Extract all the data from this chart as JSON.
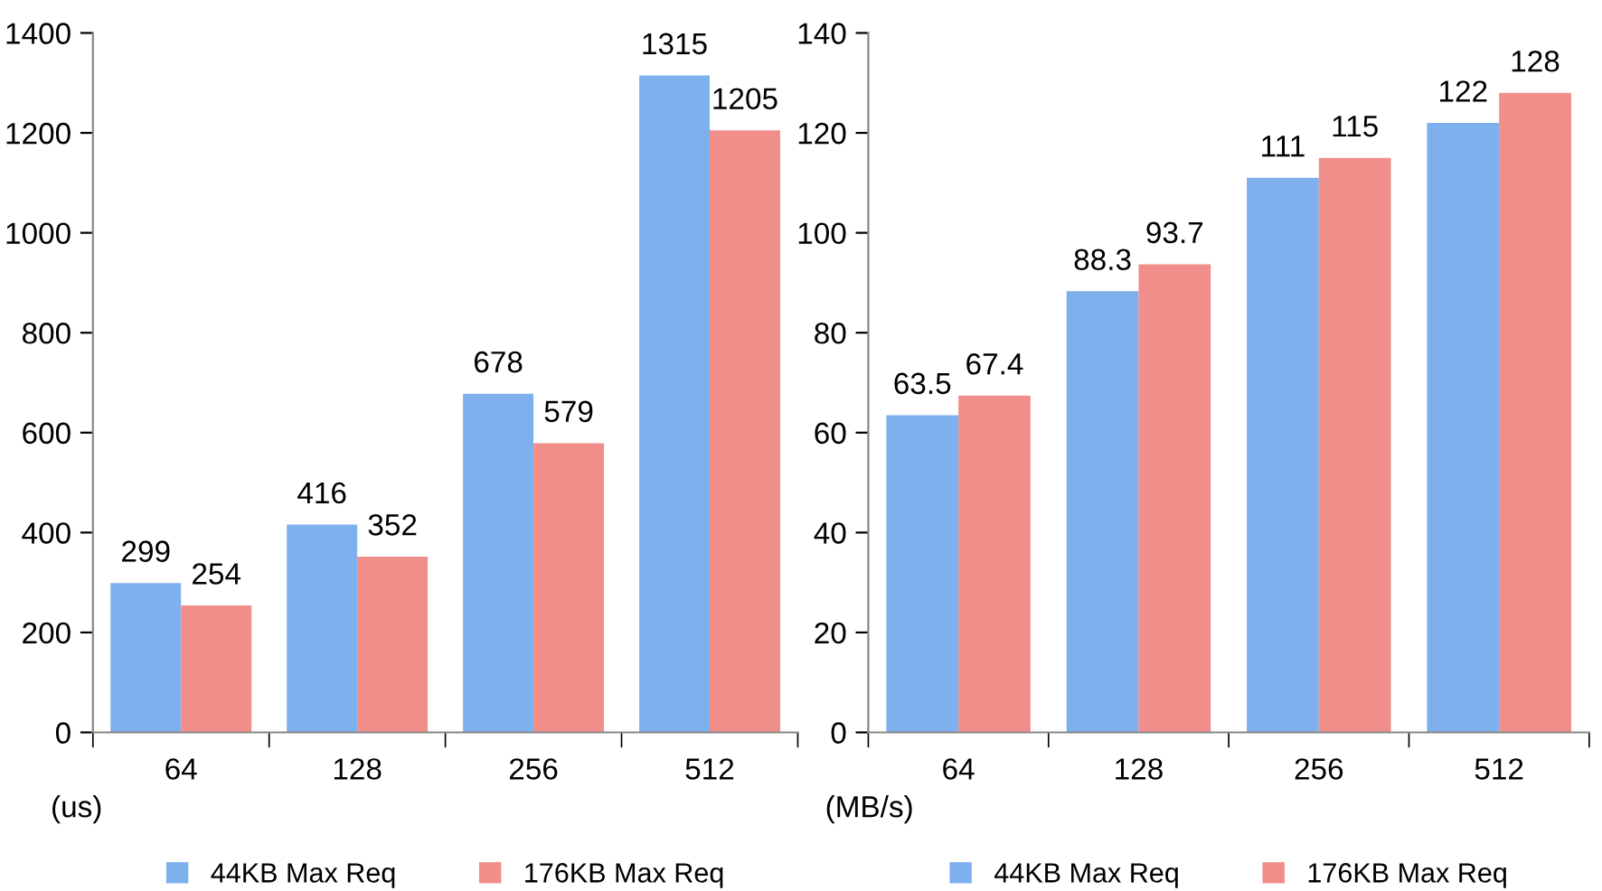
{
  "chart_data": [
    {
      "type": "bar",
      "categories": [
        "64",
        "128",
        "256",
        "512"
      ],
      "ylabel": "(us)",
      "ylim": [
        0,
        1400
      ],
      "yticks": [
        0,
        200,
        400,
        600,
        800,
        1000,
        1200,
        1400
      ],
      "data_labels": true,
      "legend": "bottom",
      "grid": false,
      "series": [
        {
          "name": "44KB Max Req",
          "color": "#7fb0ee",
          "values": [
            299,
            416,
            678,
            1315
          ]
        },
        {
          "name": "176KB Max Req",
          "color": "#f08e8a",
          "values": [
            254,
            352,
            579,
            1205
          ]
        }
      ]
    },
    {
      "type": "bar",
      "categories": [
        "64",
        "128",
        "256",
        "512"
      ],
      "ylabel": "(MB/s)",
      "ylim": [
        0,
        140
      ],
      "yticks": [
        0,
        20,
        40,
        60,
        80,
        100,
        120,
        140
      ],
      "data_labels": true,
      "legend": "bottom",
      "grid": false,
      "series": [
        {
          "name": "44KB Max Req",
          "color": "#7fb0ee",
          "values": [
            63.5,
            88.3,
            111,
            122
          ]
        },
        {
          "name": "176KB Max Req",
          "color": "#f08e8a",
          "values": [
            67.4,
            93.7,
            115,
            128
          ]
        }
      ]
    }
  ]
}
